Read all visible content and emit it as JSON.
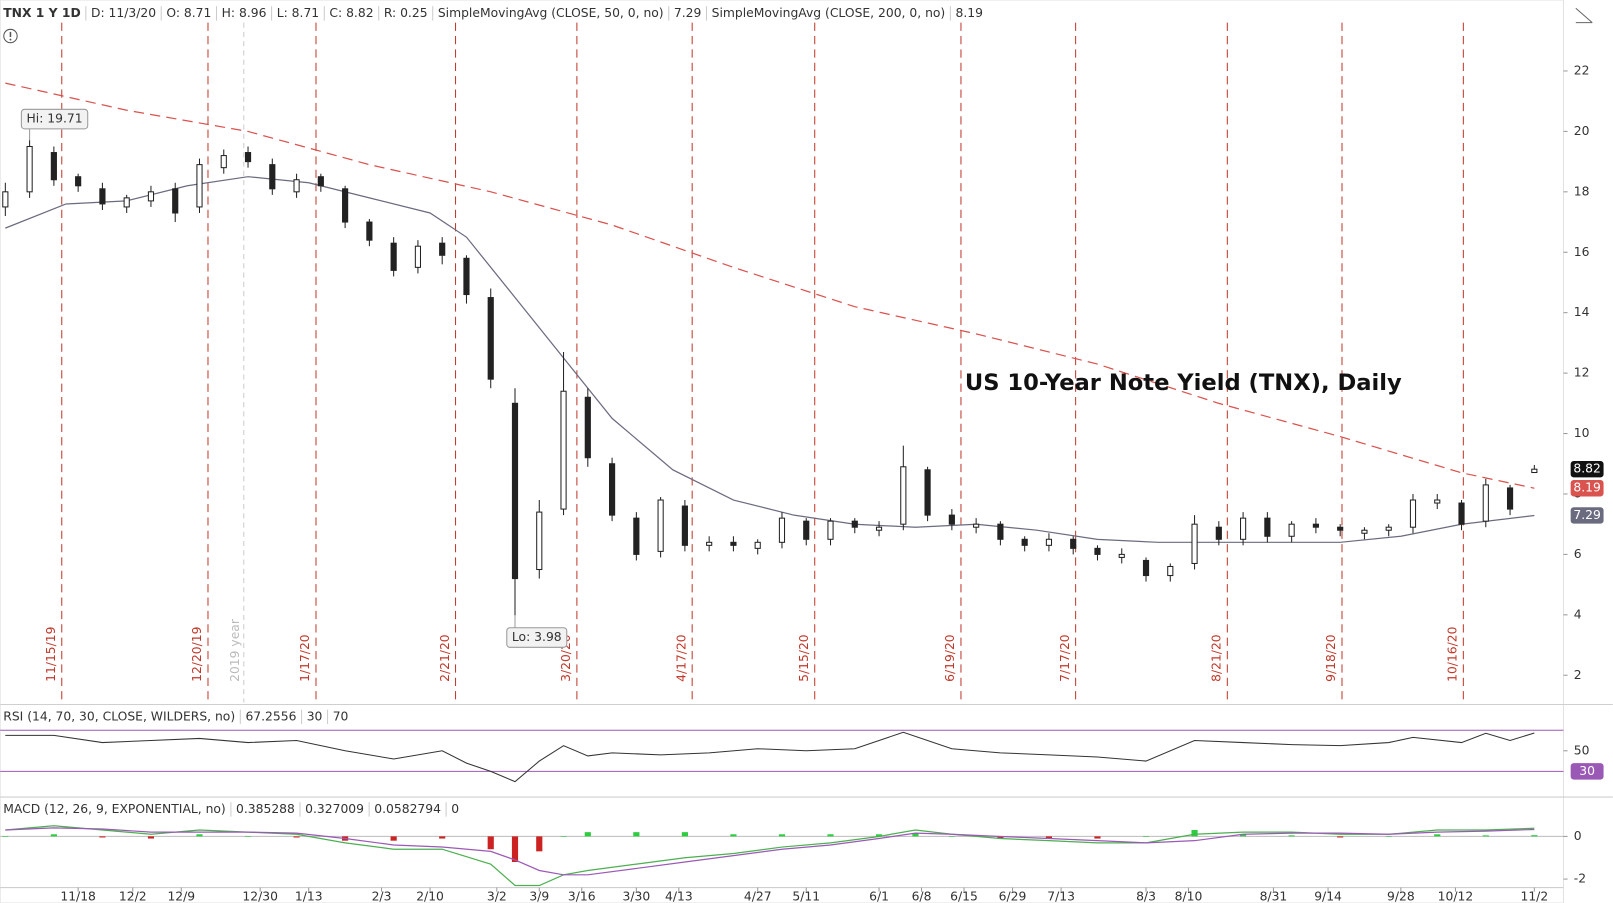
{
  "chart_data": [
    {
      "type": "candlestick",
      "symbol": "TNX 1 Y 1D",
      "header": [
        "D: 11/3/20",
        "O: 8.71",
        "H: 8.96",
        "L: 8.71",
        "C: 8.82",
        "R: 0.25"
      ],
      "title": "US 10-Year Note Yield (TNX), Daily",
      "xlim": [
        -0.85,
        256.8
      ],
      "ylim": [
        1.1,
        23.6
      ],
      "yticks": [
        2,
        4,
        6,
        8,
        10,
        12,
        14,
        16,
        18,
        20,
        22
      ],
      "x": [
        0,
        4,
        8,
        12,
        16,
        20,
        24,
        28,
        32,
        36,
        40,
        44,
        48,
        52,
        56,
        60,
        64,
        68,
        72,
        76,
        80,
        84,
        88,
        92,
        96,
        100,
        104,
        108,
        112,
        116,
        120,
        124,
        128,
        132,
        136,
        140,
        144,
        148,
        152,
        156,
        160,
        164,
        168,
        172,
        176,
        180,
        184,
        188,
        192,
        196,
        200,
        204,
        208,
        212,
        216,
        220,
        224,
        228,
        232,
        236,
        240,
        244,
        248,
        252
      ],
      "open": [
        17.5,
        18.0,
        19.3,
        18.5,
        18.1,
        17.5,
        17.7,
        18.1,
        17.5,
        18.8,
        19.3,
        18.9,
        18.0,
        18.5,
        18.1,
        17.0,
        16.3,
        15.5,
        16.3,
        15.8,
        14.5,
        11.0,
        5.5,
        7.5,
        11.2,
        9.0,
        7.2,
        6.1,
        7.6,
        6.3,
        6.4,
        6.2,
        6.4,
        7.1,
        6.5,
        7.1,
        6.8,
        7.0,
        8.8,
        7.3,
        6.9,
        7.0,
        6.5,
        6.3,
        6.5,
        6.2,
        5.9,
        5.8,
        5.3,
        5.7,
        6.9,
        6.5,
        7.2,
        6.6,
        7.0,
        6.9,
        6.7,
        6.8,
        6.9,
        7.7,
        7.7,
        7.1,
        8.2,
        8.71
      ],
      "high": [
        18.3,
        19.71,
        19.5,
        18.6,
        18.3,
        17.9,
        18.2,
        18.3,
        19.1,
        19.4,
        19.5,
        19.1,
        18.6,
        18.6,
        18.2,
        17.1,
        16.5,
        16.4,
        16.5,
        15.9,
        14.8,
        11.5,
        7.8,
        12.7,
        11.5,
        9.2,
        7.4,
        7.9,
        7.8,
        6.6,
        6.6,
        6.5,
        7.4,
        7.2,
        7.2,
        7.2,
        7.1,
        9.6,
        8.9,
        7.5,
        7.2,
        7.1,
        6.6,
        6.7,
        6.6,
        6.3,
        6.2,
        5.9,
        5.7,
        7.3,
        7.1,
        7.4,
        7.4,
        7.1,
        7.2,
        7.0,
        6.9,
        7.0,
        8.0,
        8.0,
        7.8,
        8.5,
        8.3,
        8.96
      ],
      "low": [
        17.2,
        17.8,
        18.2,
        18.0,
        17.4,
        17.3,
        17.5,
        17.0,
        17.3,
        18.6,
        18.8,
        17.9,
        17.8,
        18.0,
        16.8,
        16.2,
        15.2,
        15.3,
        15.6,
        14.3,
        11.5,
        3.98,
        5.2,
        7.3,
        8.9,
        7.1,
        5.8,
        5.9,
        6.1,
        6.1,
        6.1,
        6.0,
        6.2,
        6.3,
        6.3,
        6.7,
        6.6,
        6.8,
        7.1,
        6.8,
        6.7,
        6.3,
        6.1,
        6.1,
        6.0,
        5.8,
        5.7,
        5.1,
        5.1,
        5.5,
        6.3,
        6.3,
        6.4,
        6.4,
        6.7,
        6.6,
        6.5,
        6.6,
        6.7,
        7.5,
        6.8,
        6.9,
        7.3,
        8.71
      ],
      "close": [
        18.0,
        19.5,
        18.4,
        18.2,
        17.6,
        17.8,
        18.0,
        17.3,
        18.9,
        19.2,
        19.0,
        18.1,
        18.4,
        18.2,
        17.0,
        16.4,
        15.4,
        16.2,
        15.9,
        14.6,
        11.8,
        5.2,
        7.4,
        11.4,
        9.2,
        7.3,
        6.0,
        7.8,
        6.3,
        6.4,
        6.3,
        6.4,
        7.2,
        6.5,
        7.1,
        6.9,
        6.9,
        8.9,
        7.3,
        7.0,
        7.0,
        6.5,
        6.3,
        6.5,
        6.2,
        6.0,
        6.0,
        5.3,
        5.6,
        7.0,
        6.5,
        7.2,
        6.6,
        7.0,
        6.9,
        6.8,
        6.8,
        6.9,
        7.8,
        7.8,
        7.0,
        8.3,
        7.5,
        8.82
      ],
      "up_color": "#ffffff",
      "down_color": "#222222",
      "series": [
        {
          "name": "SimpleMovingAvg (CLOSE, 50, 0, no)",
          "color": "#6b6b80",
          "dashed": false,
          "x": [
            0,
            10,
            20,
            30,
            40,
            50,
            60,
            70,
            76,
            84,
            92,
            100,
            110,
            120,
            130,
            140,
            150,
            160,
            170,
            180,
            190,
            200,
            210,
            220,
            230,
            240,
            252
          ],
          "values": [
            16.8,
            17.6,
            17.7,
            18.2,
            18.5,
            18.3,
            17.8,
            17.3,
            16.5,
            14.5,
            12.5,
            10.5,
            8.8,
            7.8,
            7.3,
            7.0,
            6.9,
            7.0,
            6.8,
            6.5,
            6.4,
            6.4,
            6.4,
            6.4,
            6.6,
            7.0,
            7.29
          ]
        },
        {
          "name": "SimpleMovingAvg (CLOSE, 200, 0, no)",
          "color": "#d9534f",
          "dashed": true,
          "x": [
            0,
            20,
            40,
            60,
            80,
            100,
            120,
            140,
            160,
            180,
            200,
            220,
            240,
            252
          ],
          "values": [
            21.6,
            20.7,
            20.0,
            18.9,
            18.0,
            16.9,
            15.5,
            14.2,
            13.3,
            12.3,
            11.0,
            9.9,
            8.7,
            8.19
          ]
        }
      ],
      "annotations": [
        "Hi: 19.71",
        "Lo: 3.98"
      ],
      "events": [
        {
          "x": 9.3,
          "label": "11/15/19"
        },
        {
          "x": 33.4,
          "label": "12/20/19"
        },
        {
          "x": 51.2,
          "label": "1/17/20"
        },
        {
          "x": 74.2,
          "label": "2/21/20"
        },
        {
          "x": 94.2,
          "label": "3/20/20"
        },
        {
          "x": 113.2,
          "label": "4/17/20"
        },
        {
          "x": 133.4,
          "label": "5/15/20"
        },
        {
          "x": 157.5,
          "label": "6/19/20"
        },
        {
          "x": 176.4,
          "label": "7/17/20"
        },
        {
          "x": 201.4,
          "label": "8/21/20"
        },
        {
          "x": 220.3,
          "label": "9/18/20"
        },
        {
          "x": 240.3,
          "label": "10/16/20"
        }
      ],
      "event_color": "#c0392b",
      "year_marker": {
        "x": 39.3,
        "label": "2019 year"
      }
    },
    {
      "type": "line",
      "title": "RSI (14, 70, 30, CLOSE, WILDERS, no)",
      "color": "#333333",
      "band_color": "#9b59b6",
      "ylim": [
        7,
        92
      ],
      "yticks": [
        50
      ],
      "oversold": 30,
      "overbought": 70,
      "x": [
        0,
        8,
        16,
        24,
        32,
        40,
        48,
        56,
        64,
        72,
        76,
        80,
        84,
        88,
        92,
        96,
        100,
        108,
        116,
        124,
        132,
        140,
        148,
        156,
        164,
        172,
        180,
        188,
        196,
        204,
        212,
        220,
        228,
        232,
        240,
        244,
        248,
        252
      ],
      "values": [
        65,
        65,
        58,
        60,
        62,
        58,
        60,
        50,
        42,
        50,
        38,
        30,
        20,
        40,
        55,
        45,
        48,
        46,
        48,
        52,
        50,
        52,
        68,
        52,
        48,
        46,
        44,
        40,
        60,
        58,
        56,
        55,
        58,
        63,
        58,
        67,
        60,
        67.2556
      ]
    },
    {
      "type": "macd",
      "title": "MACD (12, 26, 9, EXPONENTIAL, no)",
      "ylim": [
        -2.35,
        1.7
      ],
      "yticks": [
        0,
        -2
      ],
      "zero_line": 0,
      "x": [
        0,
        8,
        16,
        24,
        32,
        40,
        48,
        56,
        64,
        72,
        80,
        84,
        88,
        92,
        96,
        104,
        112,
        120,
        128,
        136,
        144,
        150,
        156,
        164,
        172,
        180,
        188,
        196,
        204,
        212,
        220,
        228,
        236,
        244,
        252
      ],
      "series": [
        {
          "color": "#4caf50",
          "values": [
            0.3,
            0.5,
            0.3,
            0.1,
            0.3,
            0.2,
            0.1,
            -0.3,
            -0.6,
            -0.6,
            -1.3,
            -2.3,
            -2.3,
            -1.8,
            -1.6,
            -1.3,
            -1.0,
            -0.8,
            -0.5,
            -0.3,
            0,
            0.3,
            0.1,
            -0.1,
            -0.2,
            -0.3,
            -0.3,
            0.1,
            0.2,
            0.2,
            0.1,
            0.1,
            0.3,
            0.3,
            0.385288
          ]
        },
        {
          "color": "#9b59b6",
          "values": [
            0.3,
            0.4,
            0.35,
            0.2,
            0.2,
            0.2,
            0.15,
            -0.1,
            -0.4,
            -0.5,
            -0.7,
            -1.1,
            -1.6,
            -1.8,
            -1.8,
            -1.5,
            -1.2,
            -0.9,
            -0.6,
            -0.4,
            -0.1,
            0.15,
            0.1,
            0,
            -0.1,
            -0.2,
            -0.3,
            -0.2,
            0.1,
            0.15,
            0.15,
            0.1,
            0.2,
            0.25,
            0.327009
          ]
        }
      ],
      "histogram": {
        "up_color": "#2ecc40",
        "down_color": "#cc2222",
        "values": [
          0,
          0.1,
          -0.05,
          -0.1,
          0.1,
          0,
          -0.05,
          -0.2,
          -0.2,
          -0.1,
          -0.6,
          -1.2,
          -0.7,
          0,
          0.2,
          0.2,
          0.2,
          0.1,
          0.1,
          0.1,
          0.1,
          0.15,
          0,
          -0.1,
          -0.1,
          -0.1,
          0,
          0.3,
          0.1,
          0.05,
          -0.05,
          0,
          0.1,
          0.05,
          0.0582794
        ]
      },
      "xticks": [
        {
          "value": 12,
          "label": "11/18"
        },
        {
          "value": 21,
          "label": "12/2"
        },
        {
          "value": 29,
          "label": "12/9"
        },
        {
          "value": 42,
          "label": "12/30"
        },
        {
          "value": 50,
          "label": "1/13"
        },
        {
          "value": 62,
          "label": "2/3"
        },
        {
          "value": 70,
          "label": "2/10"
        },
        {
          "value": 81,
          "label": "3/2"
        },
        {
          "value": 88,
          "label": "3/9"
        },
        {
          "value": 95,
          "label": "3/16"
        },
        {
          "value": 104,
          "label": "3/30"
        },
        {
          "value": 111,
          "label": "4/13"
        },
        {
          "value": 124,
          "label": "4/27"
        },
        {
          "value": 132,
          "label": "5/11"
        },
        {
          "value": 144,
          "label": "6/1"
        },
        {
          "value": 151,
          "label": "6/8"
        },
        {
          "value": 158,
          "label": "6/15"
        },
        {
          "value": 166,
          "label": "6/29"
        },
        {
          "value": 174,
          "label": "7/13"
        },
        {
          "value": 188,
          "label": "8/3"
        },
        {
          "value": 195,
          "label": "8/10"
        },
        {
          "value": 209,
          "label": "8/31"
        },
        {
          "value": 218,
          "label": "9/14"
        },
        {
          "value": 230,
          "label": "9/28"
        },
        {
          "value": 239,
          "label": "10/12"
        },
        {
          "value": 252,
          "label": "11/2"
        }
      ]
    }
  ]
}
